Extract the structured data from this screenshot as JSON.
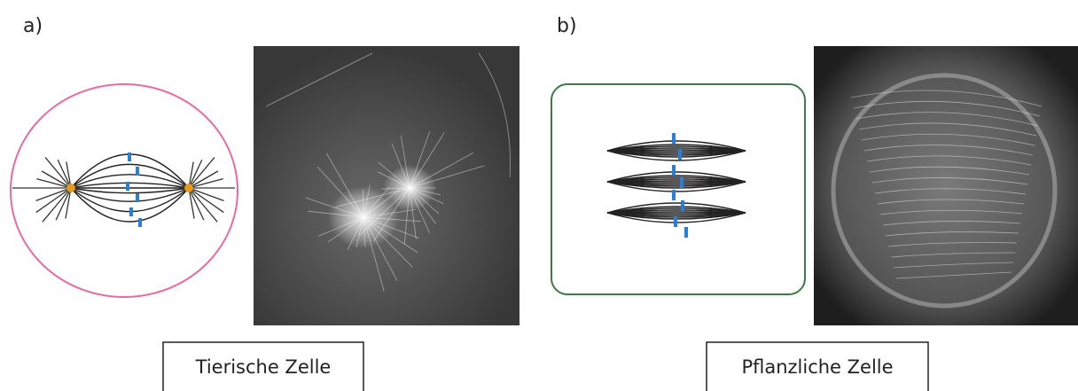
{
  "panels": [
    {
      "label": "a)",
      "caption": "Tierische Zelle"
    },
    {
      "label": "b)",
      "caption": "Pflanzliche Zelle"
    }
  ]
}
